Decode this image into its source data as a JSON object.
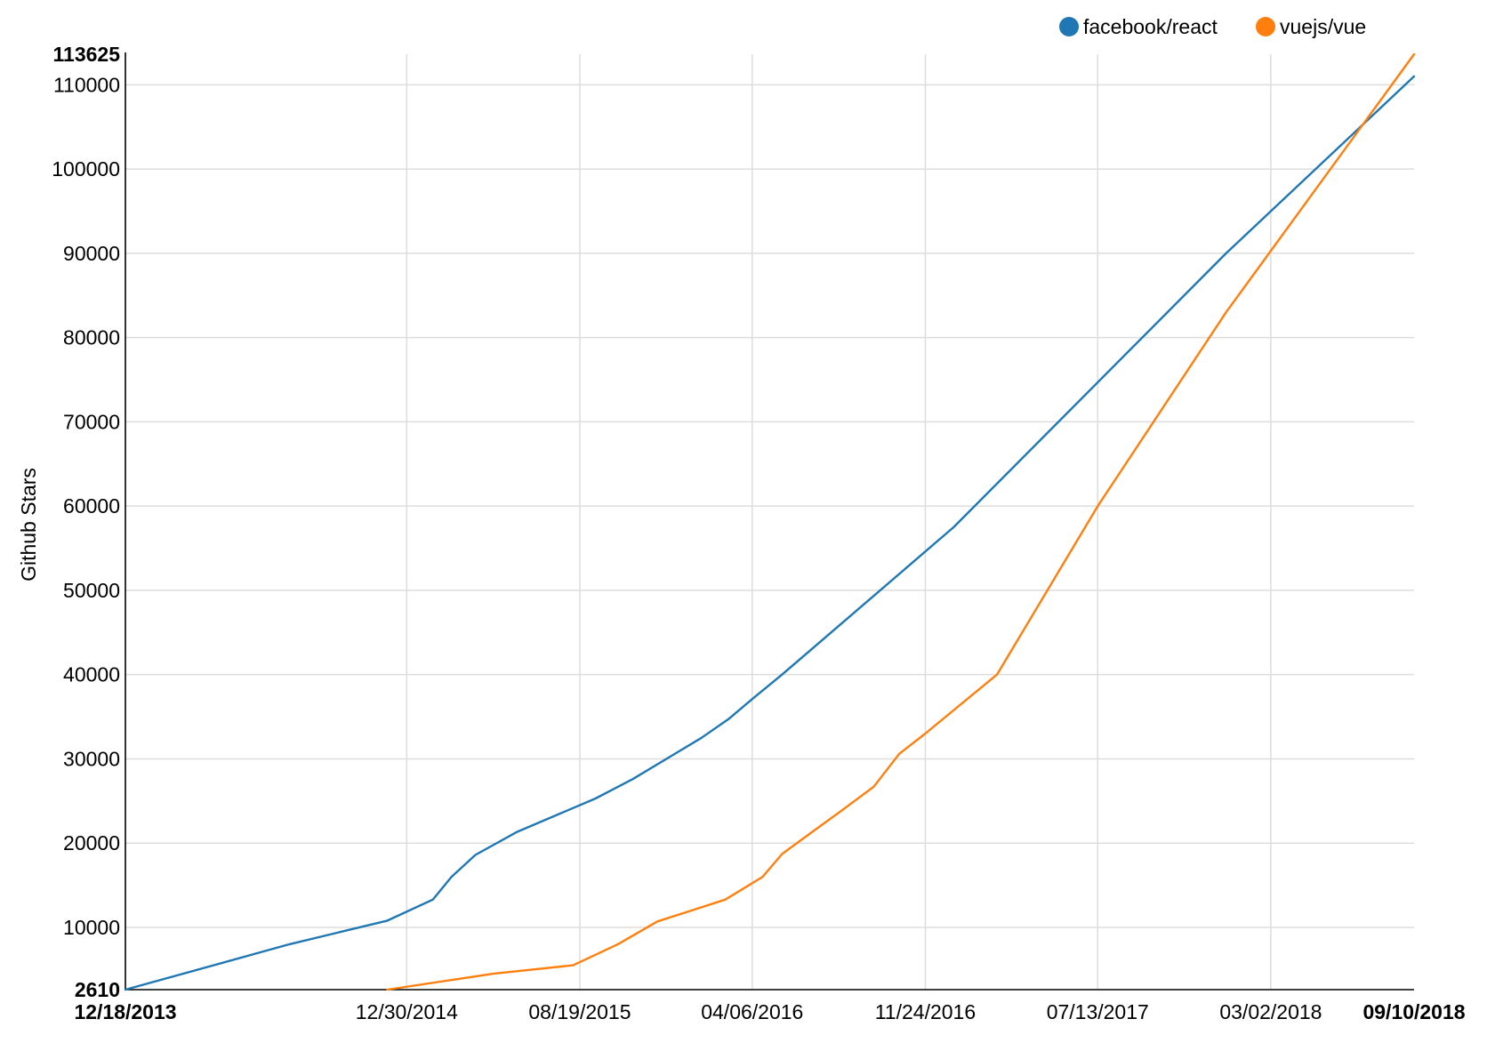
{
  "chart_data": {
    "type": "line",
    "title": "",
    "xlabel": "",
    "ylabel": "Github Stars",
    "legend_position": "top-right",
    "grid": true,
    "x_range": [
      "2013-12-18",
      "2018-09-10"
    ],
    "ylim": [
      2610,
      113625
    ],
    "x_ticks": [
      {
        "date": "2013-12-18",
        "label": "12/18/2013",
        "bold": true
      },
      {
        "date": "2014-12-30",
        "label": "12/30/2014",
        "bold": false
      },
      {
        "date": "2015-08-19",
        "label": "08/19/2015",
        "bold": false
      },
      {
        "date": "2016-04-06",
        "label": "04/06/2016",
        "bold": false
      },
      {
        "date": "2016-11-24",
        "label": "11/24/2016",
        "bold": false
      },
      {
        "date": "2017-07-13",
        "label": "07/13/2017",
        "bold": false
      },
      {
        "date": "2018-03-02",
        "label": "03/02/2018",
        "bold": false
      },
      {
        "date": "2018-09-10",
        "label": "09/10/2018",
        "bold": true
      }
    ],
    "y_ticks": [
      {
        "value": 2610,
        "label": "2610",
        "bold": true
      },
      {
        "value": 10000,
        "label": "10000",
        "bold": false
      },
      {
        "value": 20000,
        "label": "20000",
        "bold": false
      },
      {
        "value": 30000,
        "label": "30000",
        "bold": false
      },
      {
        "value": 40000,
        "label": "40000",
        "bold": false
      },
      {
        "value": 50000,
        "label": "50000",
        "bold": false
      },
      {
        "value": 60000,
        "label": "60000",
        "bold": false
      },
      {
        "value": 70000,
        "label": "70000",
        "bold": false
      },
      {
        "value": 80000,
        "label": "80000",
        "bold": false
      },
      {
        "value": 90000,
        "label": "90000",
        "bold": false
      },
      {
        "value": 100000,
        "label": "100000",
        "bold": false
      },
      {
        "value": 110000,
        "label": "110000",
        "bold": false
      },
      {
        "value": 113625,
        "label": "113625",
        "bold": true
      }
    ],
    "series": [
      {
        "name": "facebook/react",
        "color": "#1f77b4",
        "points": [
          {
            "date": "2013-12-18",
            "value": 2610
          },
          {
            "date": "2014-07-26",
            "value": 8000
          },
          {
            "date": "2014-12-04",
            "value": 10800
          },
          {
            "date": "2015-02-03",
            "value": 13300
          },
          {
            "date": "2015-02-28",
            "value": 16000
          },
          {
            "date": "2015-04-01",
            "value": 18600
          },
          {
            "date": "2015-05-26",
            "value": 21300
          },
          {
            "date": "2015-09-09",
            "value": 25300
          },
          {
            "date": "2015-10-29",
            "value": 27600
          },
          {
            "date": "2016-01-29",
            "value": 32500
          },
          {
            "date": "2016-03-05",
            "value": 34700
          },
          {
            "date": "2016-04-06",
            "value": 37100
          },
          {
            "date": "2016-05-16",
            "value": 40000
          },
          {
            "date": "2017-01-01",
            "value": 57500
          },
          {
            "date": "2018-01-01",
            "value": 90000
          },
          {
            "date": "2018-09-10",
            "value": 111000
          }
        ]
      },
      {
        "name": "vuejs/vue",
        "color": "#ff7f0e",
        "points": [
          {
            "date": "2014-12-04",
            "value": 2610
          },
          {
            "date": "2015-04-25",
            "value": 4500
          },
          {
            "date": "2015-08-10",
            "value": 5500
          },
          {
            "date": "2015-10-09",
            "value": 8000
          },
          {
            "date": "2015-12-01",
            "value": 10700
          },
          {
            "date": "2016-03-01",
            "value": 13300
          },
          {
            "date": "2016-04-20",
            "value": 16000
          },
          {
            "date": "2016-05-16",
            "value": 18700
          },
          {
            "date": "2016-06-25",
            "value": 21300
          },
          {
            "date": "2016-08-06",
            "value": 24000
          },
          {
            "date": "2016-09-16",
            "value": 26700
          },
          {
            "date": "2016-10-20",
            "value": 30600
          },
          {
            "date": "2016-11-24",
            "value": 33000
          },
          {
            "date": "2017-01-26",
            "value": 37600
          },
          {
            "date": "2017-02-28",
            "value": 40000
          },
          {
            "date": "2017-07-13",
            "value": 60000
          },
          {
            "date": "2018-01-01",
            "value": 83000
          },
          {
            "date": "2018-09-10",
            "value": 113625
          }
        ]
      }
    ]
  }
}
